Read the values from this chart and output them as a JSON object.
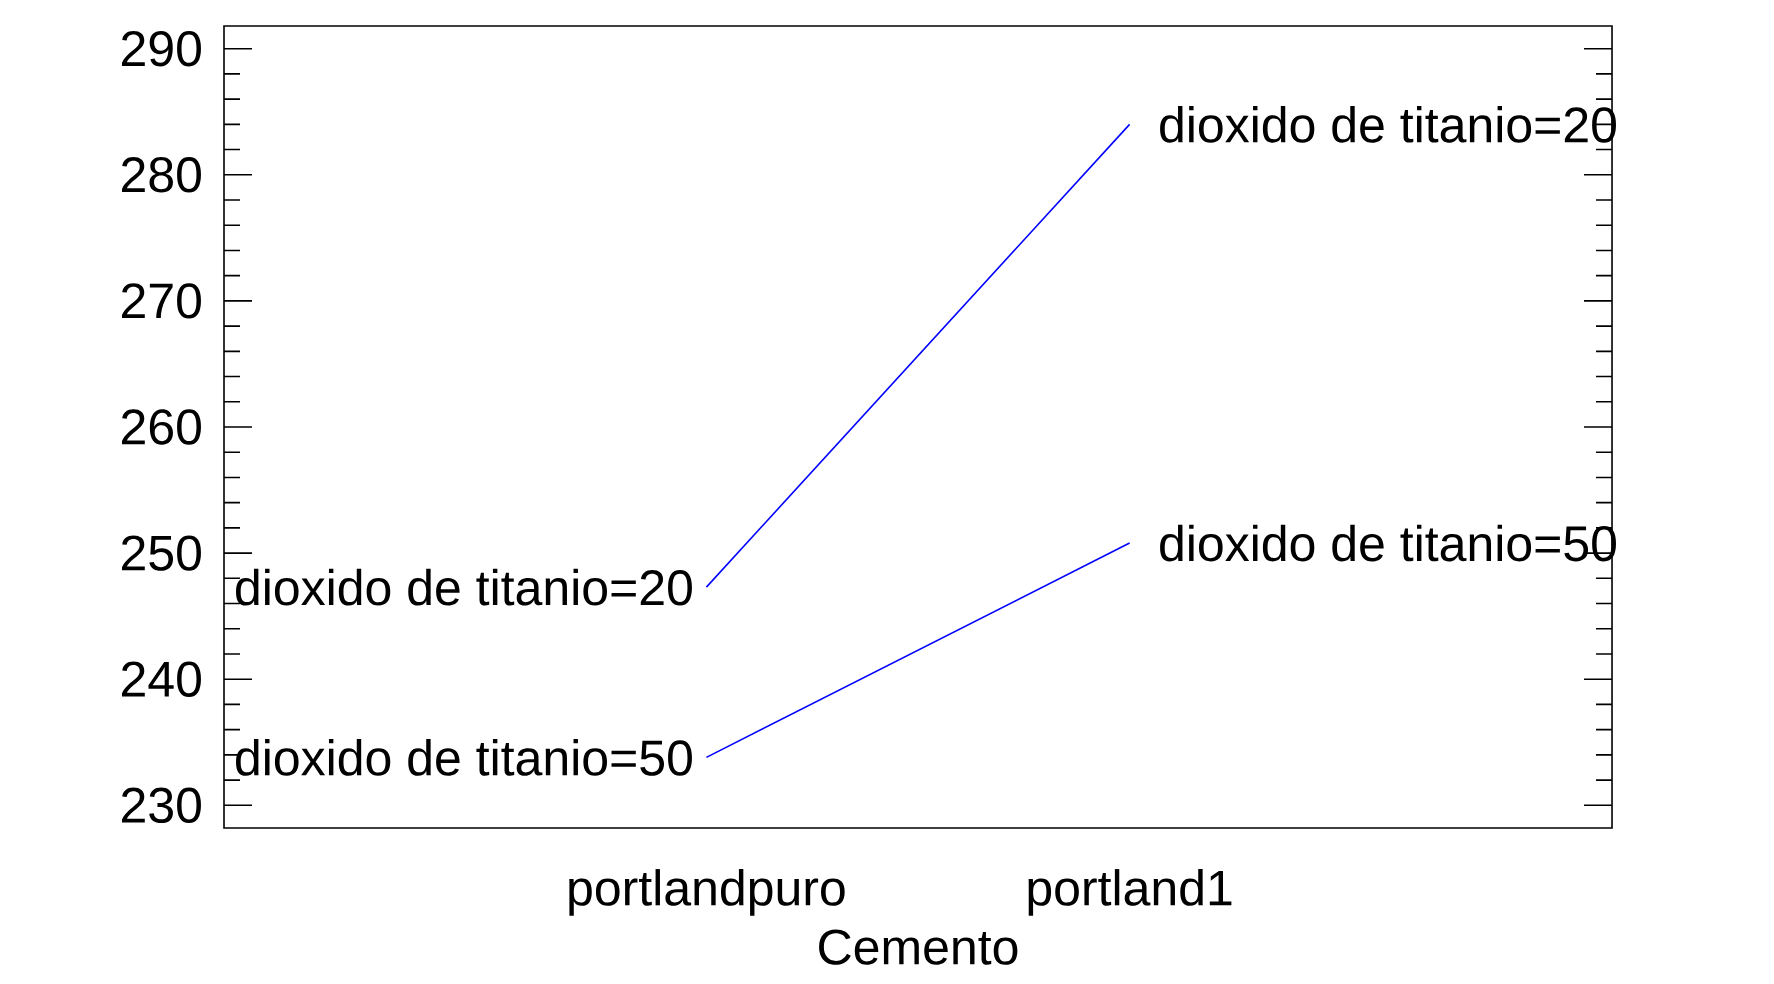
{
  "chart_data": {
    "type": "line",
    "xlabel": "Cemento",
    "categories": [
      "portlandpuro",
      "portland1"
    ],
    "series": [
      {
        "color": "#0000ff",
        "values": [
          247.3,
          284.0
        ]
      },
      {
        "color": "#0000ff",
        "values": [
          233.8,
          250.8
        ]
      }
    ],
    "ylim": [
      228.2,
      291.8
    ],
    "yticks": [
      230,
      {
        "value": 232,
        "label": null
      },
      {
        "value": 234,
        "label": null
      },
      {
        "value": 236,
        "label": null
      },
      {
        "value": 238,
        "label": null
      },
      240,
      {
        "value": 242,
        "label": null
      },
      {
        "value": 244,
        "label": null
      },
      {
        "value": 246,
        "label": null
      },
      {
        "value": 248,
        "label": null
      },
      250,
      {
        "value": 252,
        "label": null
      },
      {
        "value": 254,
        "label": null
      },
      {
        "value": 256,
        "label": null
      },
      {
        "value": 258,
        "label": null
      },
      260,
      {
        "value": 262,
        "label": null
      },
      {
        "value": 264,
        "label": null
      },
      {
        "value": 266,
        "label": null
      },
      {
        "value": 268,
        "label": null
      },
      270,
      {
        "value": 272,
        "label": null
      },
      {
        "value": 274,
        "label": null
      },
      {
        "value": 276,
        "label": null
      },
      {
        "value": 278,
        "label": null
      },
      280,
      {
        "value": 282,
        "label": null
      },
      {
        "value": 284,
        "label": null
      },
      {
        "value": 286,
        "label": null
      },
      {
        "value": 288,
        "label": null
      },
      290
    ],
    "grid": false,
    "marker": "none",
    "line_style": "solid",
    "annotations": [
      {
        "text": "dioxido de titanio=20",
        "x": "portlandpuro",
        "y": 247.3
      },
      {
        "text": "dioxido de titanio=50",
        "x": "portlandpuro",
        "y": 233.8
      },
      {
        "text": "dioxido de titanio=20",
        "x": "portland1",
        "y": 284.0
      },
      {
        "text": "dioxido de titanio=50",
        "x": "portland1",
        "y": 250.8
      }
    ]
  }
}
